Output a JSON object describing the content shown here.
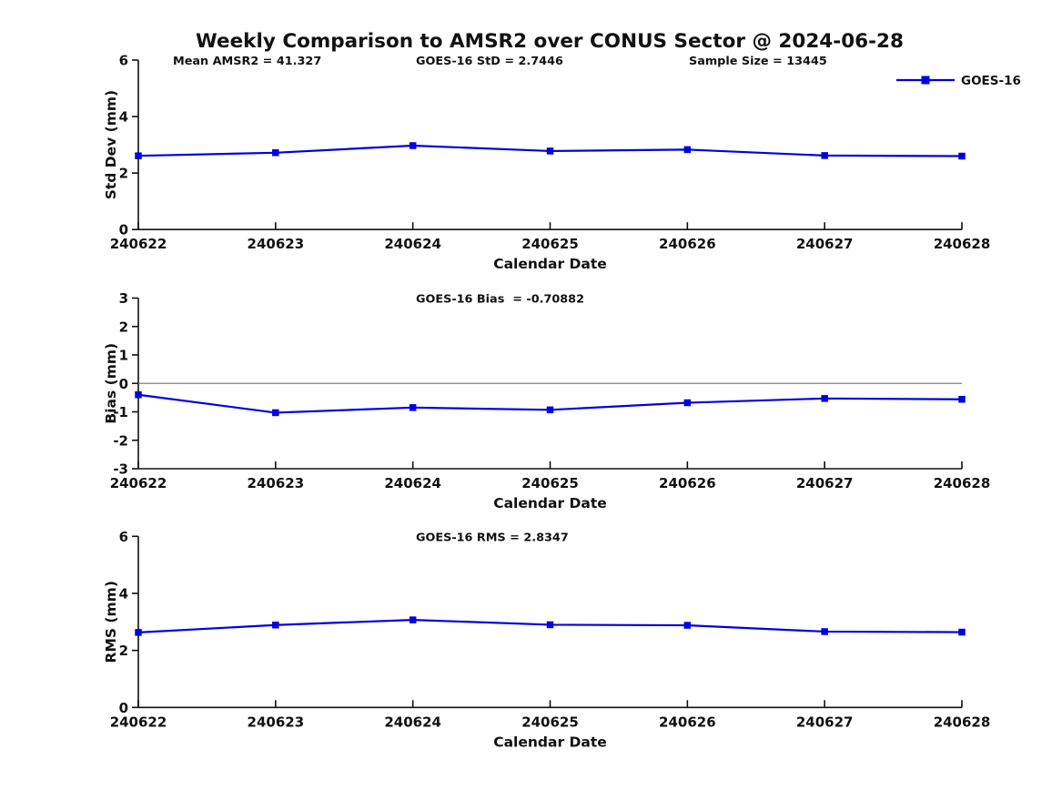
{
  "title": "Weekly Comparison to AMSR2 over CONUS Sector @ 2024-06-28",
  "legend": {
    "label": "GOES-16"
  },
  "colors": {
    "series": "#0000e0",
    "axis": "#111111",
    "zero_line": "#808080",
    "background": "#ffffff"
  },
  "chart_data": [
    {
      "type": "line",
      "name": "std-dev",
      "title": "",
      "xlabel": "Calendar Date",
      "ylabel": "Std Dev (mm)",
      "ylim": [
        0,
        6
      ],
      "yticks": [
        0,
        2,
        4,
        6
      ],
      "categories": [
        "240622",
        "240623",
        "240624",
        "240625",
        "240626",
        "240627",
        "240628"
      ],
      "series": [
        {
          "name": "GOES-16",
          "values": [
            2.61,
            2.72,
            2.97,
            2.78,
            2.83,
            2.62,
            2.6
          ]
        }
      ],
      "annotations": [
        {
          "text": "Mean AMSR2 = 41.327",
          "slot": 0
        },
        {
          "text": "GOES-16 StD = 2.7446",
          "slot": 1
        },
        {
          "text": "Sample Size = 13445",
          "slot": 2
        }
      ],
      "zero_line": false,
      "legend_position": "top-right",
      "grid": false
    },
    {
      "type": "line",
      "name": "bias",
      "title": "",
      "xlabel": "Calendar Date",
      "ylabel": "Bias (mm)",
      "ylim": [
        -3,
        3
      ],
      "yticks": [
        3,
        2,
        1,
        0,
        -1,
        -2,
        -3
      ],
      "categories": [
        "240622",
        "240623",
        "240624",
        "240625",
        "240626",
        "240627",
        "240628"
      ],
      "series": [
        {
          "name": "GOES-16",
          "values": [
            -0.4,
            -1.03,
            -0.85,
            -0.93,
            -0.68,
            -0.53,
            -0.56
          ]
        }
      ],
      "annotations": [
        {
          "text": "GOES-16 Bias  = -0.70882",
          "slot": 1
        }
      ],
      "zero_line": true,
      "grid": false
    },
    {
      "type": "line",
      "name": "rms",
      "title": "",
      "xlabel": "Calendar Date",
      "ylabel": "RMS (mm)",
      "ylim": [
        0,
        6
      ],
      "yticks": [
        0,
        2,
        4,
        6
      ],
      "categories": [
        "240622",
        "240623",
        "240624",
        "240625",
        "240626",
        "240627",
        "240628"
      ],
      "series": [
        {
          "name": "GOES-16",
          "values": [
            2.63,
            2.89,
            3.07,
            2.9,
            2.88,
            2.66,
            2.64
          ]
        }
      ],
      "annotations": [
        {
          "text": "GOES-16 RMS = 2.8347",
          "slot": 1
        }
      ],
      "zero_line": false,
      "grid": false
    }
  ]
}
